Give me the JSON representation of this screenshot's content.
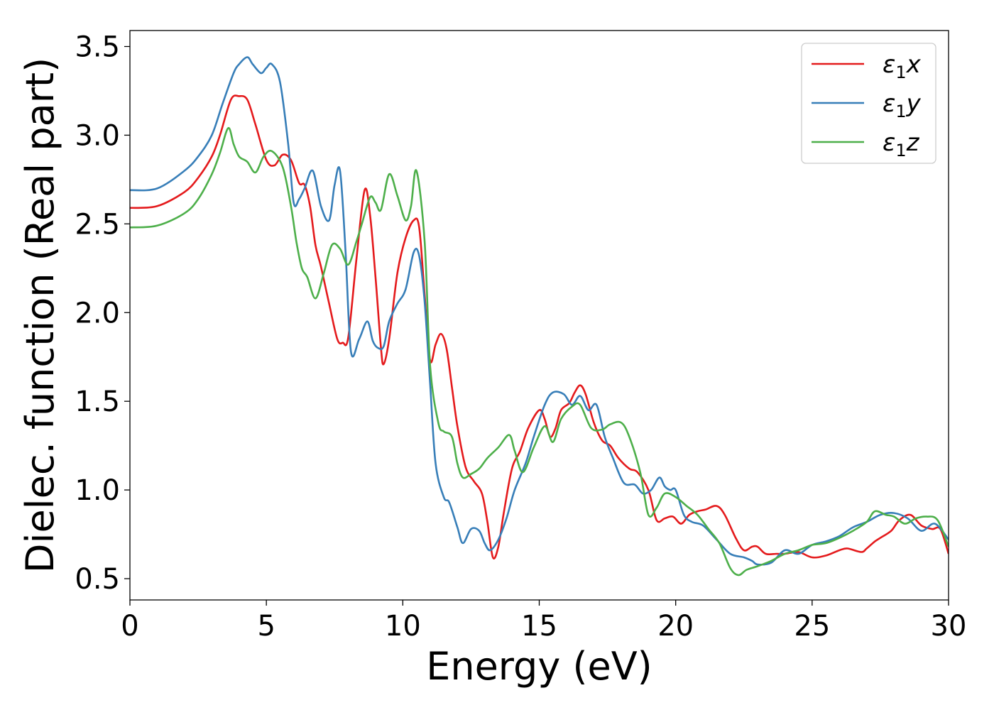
{
  "chart_data": {
    "type": "line",
    "title": "",
    "xlabel": "Energy (eV)",
    "ylabel": "Dielec. function (Real part)",
    "xlim": [
      0,
      30
    ],
    "ylim": [
      0.38,
      3.59
    ],
    "xticks": [
      0,
      5,
      10,
      15,
      20,
      25,
      30
    ],
    "xtick_labels": [
      "0",
      "5",
      "10",
      "15",
      "20",
      "25",
      "30"
    ],
    "yticks": [
      0.5,
      1.0,
      1.5,
      2.0,
      2.5,
      3.0,
      3.5
    ],
    "ytick_labels": [
      "0.5",
      "1.0",
      "1.5",
      "2.0",
      "2.5",
      "3.0",
      "3.5"
    ],
    "grid": false,
    "legend_position": "top-right",
    "series": [
      {
        "name": "ε1x",
        "legend_symbol": "ε",
        "legend_subscript": "1",
        "legend_suffix": "x",
        "color": "#e41a1c",
        "x": [
          0,
          1,
          2,
          2.5,
          3,
          3.3,
          3.7,
          4.0,
          4.3,
          4.6,
          5.0,
          5.3,
          5.6,
          5.9,
          6.2,
          6.4,
          6.6,
          6.8,
          7.0,
          7.3,
          7.6,
          7.8,
          8.0,
          8.3,
          8.6,
          8.8,
          9.0,
          9.2,
          9.3,
          9.5,
          9.8,
          10.1,
          10.4,
          10.6,
          10.8,
          11.0,
          11.2,
          11.4,
          11.6,
          11.8,
          12.0,
          12.3,
          12.6,
          12.9,
          13.1,
          13.3,
          13.5,
          13.7,
          14.0,
          14.3,
          14.6,
          15.0,
          15.2,
          15.4,
          15.6,
          15.8,
          16.1,
          16.3,
          16.5,
          16.7,
          17.0,
          17.3,
          17.6,
          17.9,
          18.3,
          18.6,
          19.0,
          19.3,
          19.6,
          19.9,
          20.2,
          20.5,
          20.8,
          21.1,
          21.5,
          21.8,
          22.2,
          22.5,
          22.8,
          23.0,
          23.3,
          23.7,
          24.0,
          24.5,
          25.0,
          25.5,
          26.0,
          26.3,
          26.8,
          27.0,
          27.3,
          27.5,
          27.9,
          28.2,
          28.6,
          29.0,
          29.4,
          29.7,
          30.0
        ],
        "values": [
          2.59,
          2.6,
          2.68,
          2.76,
          2.88,
          3.0,
          3.2,
          3.22,
          3.2,
          3.06,
          2.86,
          2.83,
          2.89,
          2.86,
          2.73,
          2.72,
          2.6,
          2.38,
          2.26,
          2.05,
          1.85,
          1.83,
          1.86,
          2.3,
          2.69,
          2.55,
          2.2,
          1.8,
          1.71,
          1.85,
          2.22,
          2.42,
          2.52,
          2.48,
          2.1,
          1.73,
          1.82,
          1.88,
          1.8,
          1.58,
          1.36,
          1.13,
          1.05,
          0.98,
          0.82,
          0.62,
          0.68,
          0.87,
          1.12,
          1.22,
          1.35,
          1.45,
          1.4,
          1.3,
          1.35,
          1.45,
          1.49,
          1.55,
          1.59,
          1.54,
          1.38,
          1.28,
          1.25,
          1.18,
          1.12,
          1.1,
          1.0,
          0.83,
          0.84,
          0.85,
          0.81,
          0.86,
          0.88,
          0.89,
          0.91,
          0.86,
          0.73,
          0.66,
          0.68,
          0.68,
          0.64,
          0.64,
          0.64,
          0.65,
          0.62,
          0.63,
          0.66,
          0.67,
          0.65,
          0.67,
          0.71,
          0.73,
          0.77,
          0.83,
          0.86,
          0.8,
          0.78,
          0.78,
          0.64
        ]
      },
      {
        "name": "ε1y",
        "legend_symbol": "ε",
        "legend_subscript": "1",
        "legend_suffix": "y",
        "color": "#377eb8",
        "x": [
          0,
          1,
          2,
          2.5,
          3,
          3.4,
          3.8,
          4.0,
          4.3,
          4.5,
          4.8,
          5.0,
          5.2,
          5.5,
          5.8,
          6.0,
          6.2,
          6.4,
          6.7,
          7.0,
          7.3,
          7.5,
          7.7,
          7.9,
          8.1,
          8.4,
          8.7,
          8.9,
          9.1,
          9.3,
          9.5,
          9.8,
          10.1,
          10.4,
          10.6,
          10.8,
          11.0,
          11.2,
          11.5,
          11.7,
          12.0,
          12.2,
          12.5,
          12.8,
          13.0,
          13.2,
          13.5,
          13.8,
          14.1,
          14.5,
          14.8,
          15.2,
          15.5,
          15.9,
          16.2,
          16.5,
          16.8,
          17.1,
          17.4,
          17.7,
          18.1,
          18.5,
          18.8,
          19.1,
          19.4,
          19.6,
          19.8,
          20.0,
          20.3,
          20.6,
          21.0,
          21.5,
          22.0,
          22.5,
          22.8,
          23.0,
          23.5,
          24.0,
          24.5,
          25.0,
          25.5,
          26.0,
          26.5,
          27.0,
          27.5,
          28.0,
          28.5,
          29.0,
          29.5,
          30.0
        ],
        "values": [
          2.69,
          2.7,
          2.8,
          2.88,
          3.0,
          3.18,
          3.35,
          3.4,
          3.44,
          3.4,
          3.35,
          3.38,
          3.4,
          3.3,
          2.95,
          2.62,
          2.64,
          2.7,
          2.8,
          2.6,
          2.52,
          2.72,
          2.8,
          2.35,
          1.78,
          1.85,
          1.95,
          1.84,
          1.8,
          1.81,
          1.95,
          2.05,
          2.13,
          2.34,
          2.32,
          2.06,
          1.6,
          1.15,
          0.96,
          0.93,
          0.79,
          0.7,
          0.78,
          0.77,
          0.7,
          0.66,
          0.72,
          0.84,
          1.0,
          1.15,
          1.3,
          1.48,
          1.55,
          1.54,
          1.48,
          1.53,
          1.45,
          1.48,
          1.3,
          1.18,
          1.04,
          1.03,
          0.98,
          1.0,
          1.07,
          1.02,
          1.0,
          1.0,
          0.86,
          0.82,
          0.8,
          0.72,
          0.64,
          0.62,
          0.6,
          0.58,
          0.59,
          0.66,
          0.64,
          0.69,
          0.71,
          0.74,
          0.79,
          0.82,
          0.86,
          0.87,
          0.84,
          0.77,
          0.81,
          0.72
        ]
      },
      {
        "name": "ε1z",
        "legend_symbol": "ε",
        "legend_subscript": "1",
        "legend_suffix": "z",
        "color": "#4daf4a",
        "x": [
          0,
          1,
          2,
          2.5,
          3,
          3.3,
          3.6,
          3.8,
          4.0,
          4.3,
          4.6,
          4.9,
          5.2,
          5.6,
          5.9,
          6.1,
          6.3,
          6.5,
          6.8,
          7.1,
          7.4,
          7.7,
          8.0,
          8.3,
          8.5,
          8.8,
          9.0,
          9.2,
          9.5,
          9.8,
          10.1,
          10.3,
          10.5,
          10.8,
          11.0,
          11.3,
          11.5,
          11.8,
          12.0,
          12.2,
          12.5,
          12.8,
          13.1,
          13.5,
          13.9,
          14.1,
          14.4,
          14.8,
          15.2,
          15.5,
          15.8,
          16.2,
          16.5,
          16.9,
          17.3,
          17.6,
          18.0,
          18.3,
          18.7,
          19.0,
          19.3,
          19.6,
          20.0,
          20.4,
          20.8,
          21.2,
          21.6,
          22.0,
          22.3,
          22.6,
          23.0,
          23.5,
          24.0,
          24.5,
          25.0,
          25.5,
          26.0,
          26.5,
          27.0,
          27.3,
          27.7,
          28.0,
          28.4,
          28.8,
          29.2,
          29.6,
          30.0
        ],
        "values": [
          2.48,
          2.49,
          2.56,
          2.64,
          2.78,
          2.9,
          3.04,
          2.95,
          2.88,
          2.85,
          2.79,
          2.88,
          2.91,
          2.82,
          2.6,
          2.4,
          2.25,
          2.2,
          2.08,
          2.22,
          2.38,
          2.36,
          2.27,
          2.4,
          2.5,
          2.65,
          2.62,
          2.58,
          2.78,
          2.66,
          2.52,
          2.6,
          2.8,
          2.4,
          1.7,
          1.38,
          1.33,
          1.3,
          1.15,
          1.07,
          1.09,
          1.12,
          1.18,
          1.24,
          1.31,
          1.22,
          1.1,
          1.24,
          1.36,
          1.27,
          1.4,
          1.47,
          1.48,
          1.35,
          1.34,
          1.37,
          1.38,
          1.3,
          1.1,
          0.86,
          0.9,
          0.98,
          0.96,
          0.91,
          0.86,
          0.78,
          0.7,
          0.56,
          0.52,
          0.55,
          0.57,
          0.6,
          0.64,
          0.66,
          0.69,
          0.7,
          0.73,
          0.77,
          0.82,
          0.88,
          0.86,
          0.85,
          0.81,
          0.84,
          0.85,
          0.83,
          0.68
        ]
      }
    ]
  }
}
